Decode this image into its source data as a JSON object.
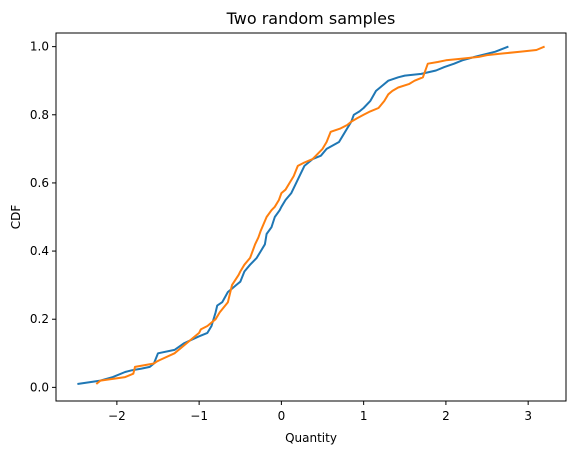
{
  "chart_data": {
    "type": "line",
    "title": "Two random samples",
    "xlabel": "Quantity",
    "ylabel": "CDF",
    "xlim": [
      -2.74,
      3.46
    ],
    "ylim": [
      -0.04,
      1.04
    ],
    "xticks": [
      -2,
      -1,
      0,
      1,
      2,
      3
    ],
    "xtick_labels": [
      "−2",
      "−1",
      "0",
      "1",
      "2",
      "3"
    ],
    "yticks": [
      0.0,
      0.2,
      0.4,
      0.6,
      0.8,
      1.0
    ],
    "ytick_labels": [
      "0.0",
      "0.2",
      "0.4",
      "0.6",
      "0.8",
      "1.0"
    ],
    "grid": false,
    "series": [
      {
        "color": "#1f77b4",
        "x": [
          -2.48,
          -2.2,
          -2.05,
          -1.9,
          -1.82,
          -1.7,
          -1.6,
          -1.55,
          -1.5,
          -1.3,
          -1.18,
          -1.0,
          -0.9,
          -0.85,
          -0.8,
          -0.78,
          -0.72,
          -0.65,
          -0.6,
          -0.55,
          -0.5,
          -0.45,
          -0.38,
          -0.3,
          -0.25,
          -0.2,
          -0.18,
          -0.12,
          -0.08,
          -0.02,
          0.0,
          0.05,
          0.12,
          0.18,
          0.22,
          0.28,
          0.33,
          0.38,
          0.48,
          0.55,
          0.7,
          0.75,
          0.8,
          0.85,
          0.88,
          0.95,
          1.0,
          1.08,
          1.15,
          1.2,
          1.3,
          1.42,
          1.5,
          1.7,
          1.88,
          1.98,
          2.1,
          2.2,
          2.35,
          2.6,
          2.76
        ],
        "y": [
          0.01,
          0.02,
          0.03,
          0.045,
          0.05,
          0.055,
          0.06,
          0.07,
          0.1,
          0.11,
          0.13,
          0.15,
          0.16,
          0.18,
          0.22,
          0.24,
          0.25,
          0.28,
          0.29,
          0.3,
          0.31,
          0.34,
          0.36,
          0.38,
          0.4,
          0.42,
          0.45,
          0.47,
          0.5,
          0.52,
          0.53,
          0.55,
          0.57,
          0.6,
          0.62,
          0.65,
          0.66,
          0.67,
          0.68,
          0.7,
          0.72,
          0.74,
          0.76,
          0.78,
          0.8,
          0.81,
          0.82,
          0.84,
          0.87,
          0.88,
          0.9,
          0.91,
          0.915,
          0.92,
          0.93,
          0.94,
          0.95,
          0.96,
          0.97,
          0.985,
          1.0
        ]
      },
      {
        "color": "#ff7f0e",
        "x": [
          -2.25,
          -2.2,
          -2.05,
          -1.9,
          -1.8,
          -1.78,
          -1.55,
          -1.52,
          -1.48,
          -1.3,
          -1.0,
          -0.98,
          -0.9,
          -0.8,
          -0.75,
          -0.65,
          -0.6,
          -0.52,
          -0.5,
          -0.45,
          -0.38,
          -0.32,
          -0.28,
          -0.25,
          -0.18,
          -0.12,
          -0.08,
          -0.03,
          0.0,
          0.05,
          0.1,
          0.15,
          0.2,
          0.28,
          0.38,
          0.42,
          0.5,
          0.55,
          0.6,
          0.72,
          0.8,
          0.85,
          0.92,
          1.0,
          1.08,
          1.18,
          1.25,
          1.3,
          1.35,
          1.42,
          1.55,
          1.62,
          1.72,
          1.78,
          1.9,
          2.0,
          2.2,
          2.4,
          2.5,
          2.7,
          2.9,
          3.1,
          3.2
        ],
        "y": [
          0.01,
          0.02,
          0.025,
          0.03,
          0.04,
          0.06,
          0.07,
          0.075,
          0.08,
          0.1,
          0.16,
          0.17,
          0.18,
          0.2,
          0.22,
          0.25,
          0.3,
          0.33,
          0.34,
          0.36,
          0.38,
          0.42,
          0.44,
          0.46,
          0.5,
          0.52,
          0.53,
          0.55,
          0.57,
          0.58,
          0.6,
          0.62,
          0.65,
          0.66,
          0.67,
          0.68,
          0.7,
          0.72,
          0.75,
          0.76,
          0.77,
          0.78,
          0.79,
          0.8,
          0.81,
          0.82,
          0.84,
          0.86,
          0.87,
          0.88,
          0.89,
          0.9,
          0.91,
          0.95,
          0.955,
          0.96,
          0.965,
          0.97,
          0.975,
          0.98,
          0.985,
          0.99,
          1.0
        ]
      }
    ]
  }
}
